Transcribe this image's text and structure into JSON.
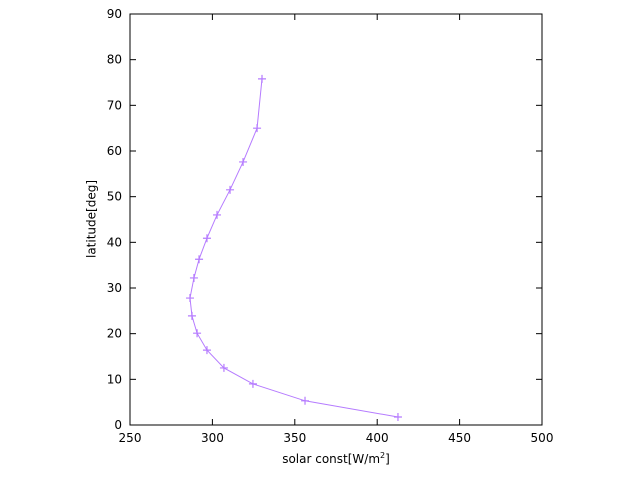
{
  "chart_data": {
    "type": "line",
    "xlabel": "solar const[W/m",
    "xlabel_superscript": "2",
    "xlabel_end": "]",
    "ylabel": "latitude[deg]",
    "series": [
      {
        "color": "#b57bff",
        "x": [
          412.6,
          356.2,
          324.6,
          307.0,
          296.7,
          290.7,
          287.6,
          286.4,
          288.8,
          291.9,
          296.7,
          302.8,
          310.7,
          318.6,
          327.1,
          330.1
        ],
        "values": [
          1.75,
          5.3,
          9.0,
          12.5,
          16.4,
          20.1,
          23.9,
          27.8,
          32.2,
          36.3,
          40.9,
          46.0,
          51.5,
          57.6,
          65.0,
          75.8
        ]
      }
    ],
    "xlim": [
      250,
      500
    ],
    "xticks": [
      250,
      300,
      350,
      400,
      450,
      500
    ],
    "ylim": [
      0,
      90
    ],
    "yticks": [
      0,
      10,
      20,
      30,
      40,
      50,
      60,
      70,
      80,
      90
    ],
    "grid": false
  }
}
